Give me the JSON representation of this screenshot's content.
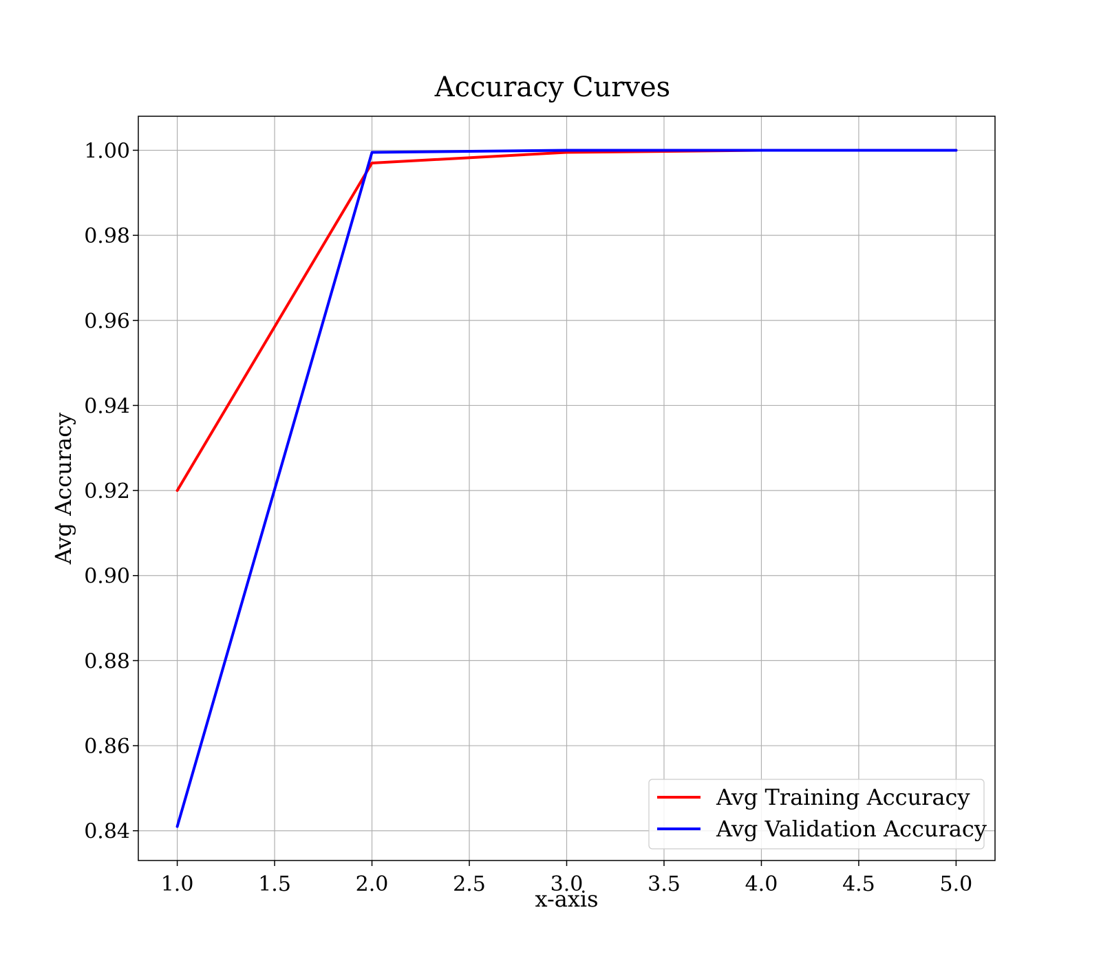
{
  "chart_data": {
    "type": "line",
    "title": "Accuracy Curves",
    "xlabel": "x-axis",
    "ylabel": "Avg Accuracy",
    "xlim": [
      0.8,
      5.2
    ],
    "ylim": [
      0.833,
      1.008
    ],
    "xticks": [
      1.0,
      1.5,
      2.0,
      2.5,
      3.0,
      3.5,
      4.0,
      4.5,
      5.0
    ],
    "xtick_labels": [
      "1.0",
      "1.5",
      "2.0",
      "2.5",
      "3.0",
      "3.5",
      "4.0",
      "4.5",
      "5.0"
    ],
    "yticks": [
      0.84,
      0.86,
      0.88,
      0.9,
      0.92,
      0.94,
      0.96,
      0.98,
      1.0
    ],
    "ytick_labels": [
      "0.84",
      "0.86",
      "0.88",
      "0.90",
      "0.92",
      "0.94",
      "0.96",
      "0.98",
      "1.00"
    ],
    "grid": true,
    "legend_position": "bottom-right",
    "x": [
      1.0,
      2.0,
      3.0,
      4.0,
      5.0
    ],
    "series": [
      {
        "name": "Avg Training Accuracy",
        "color": "#ff0000",
        "values": [
          0.92,
          0.997,
          0.9995,
          1.0,
          1.0
        ]
      },
      {
        "name": "Avg Validation Accuracy",
        "color": "#0000ff",
        "values": [
          0.841,
          0.9995,
          1.0,
          1.0,
          1.0
        ]
      }
    ]
  }
}
